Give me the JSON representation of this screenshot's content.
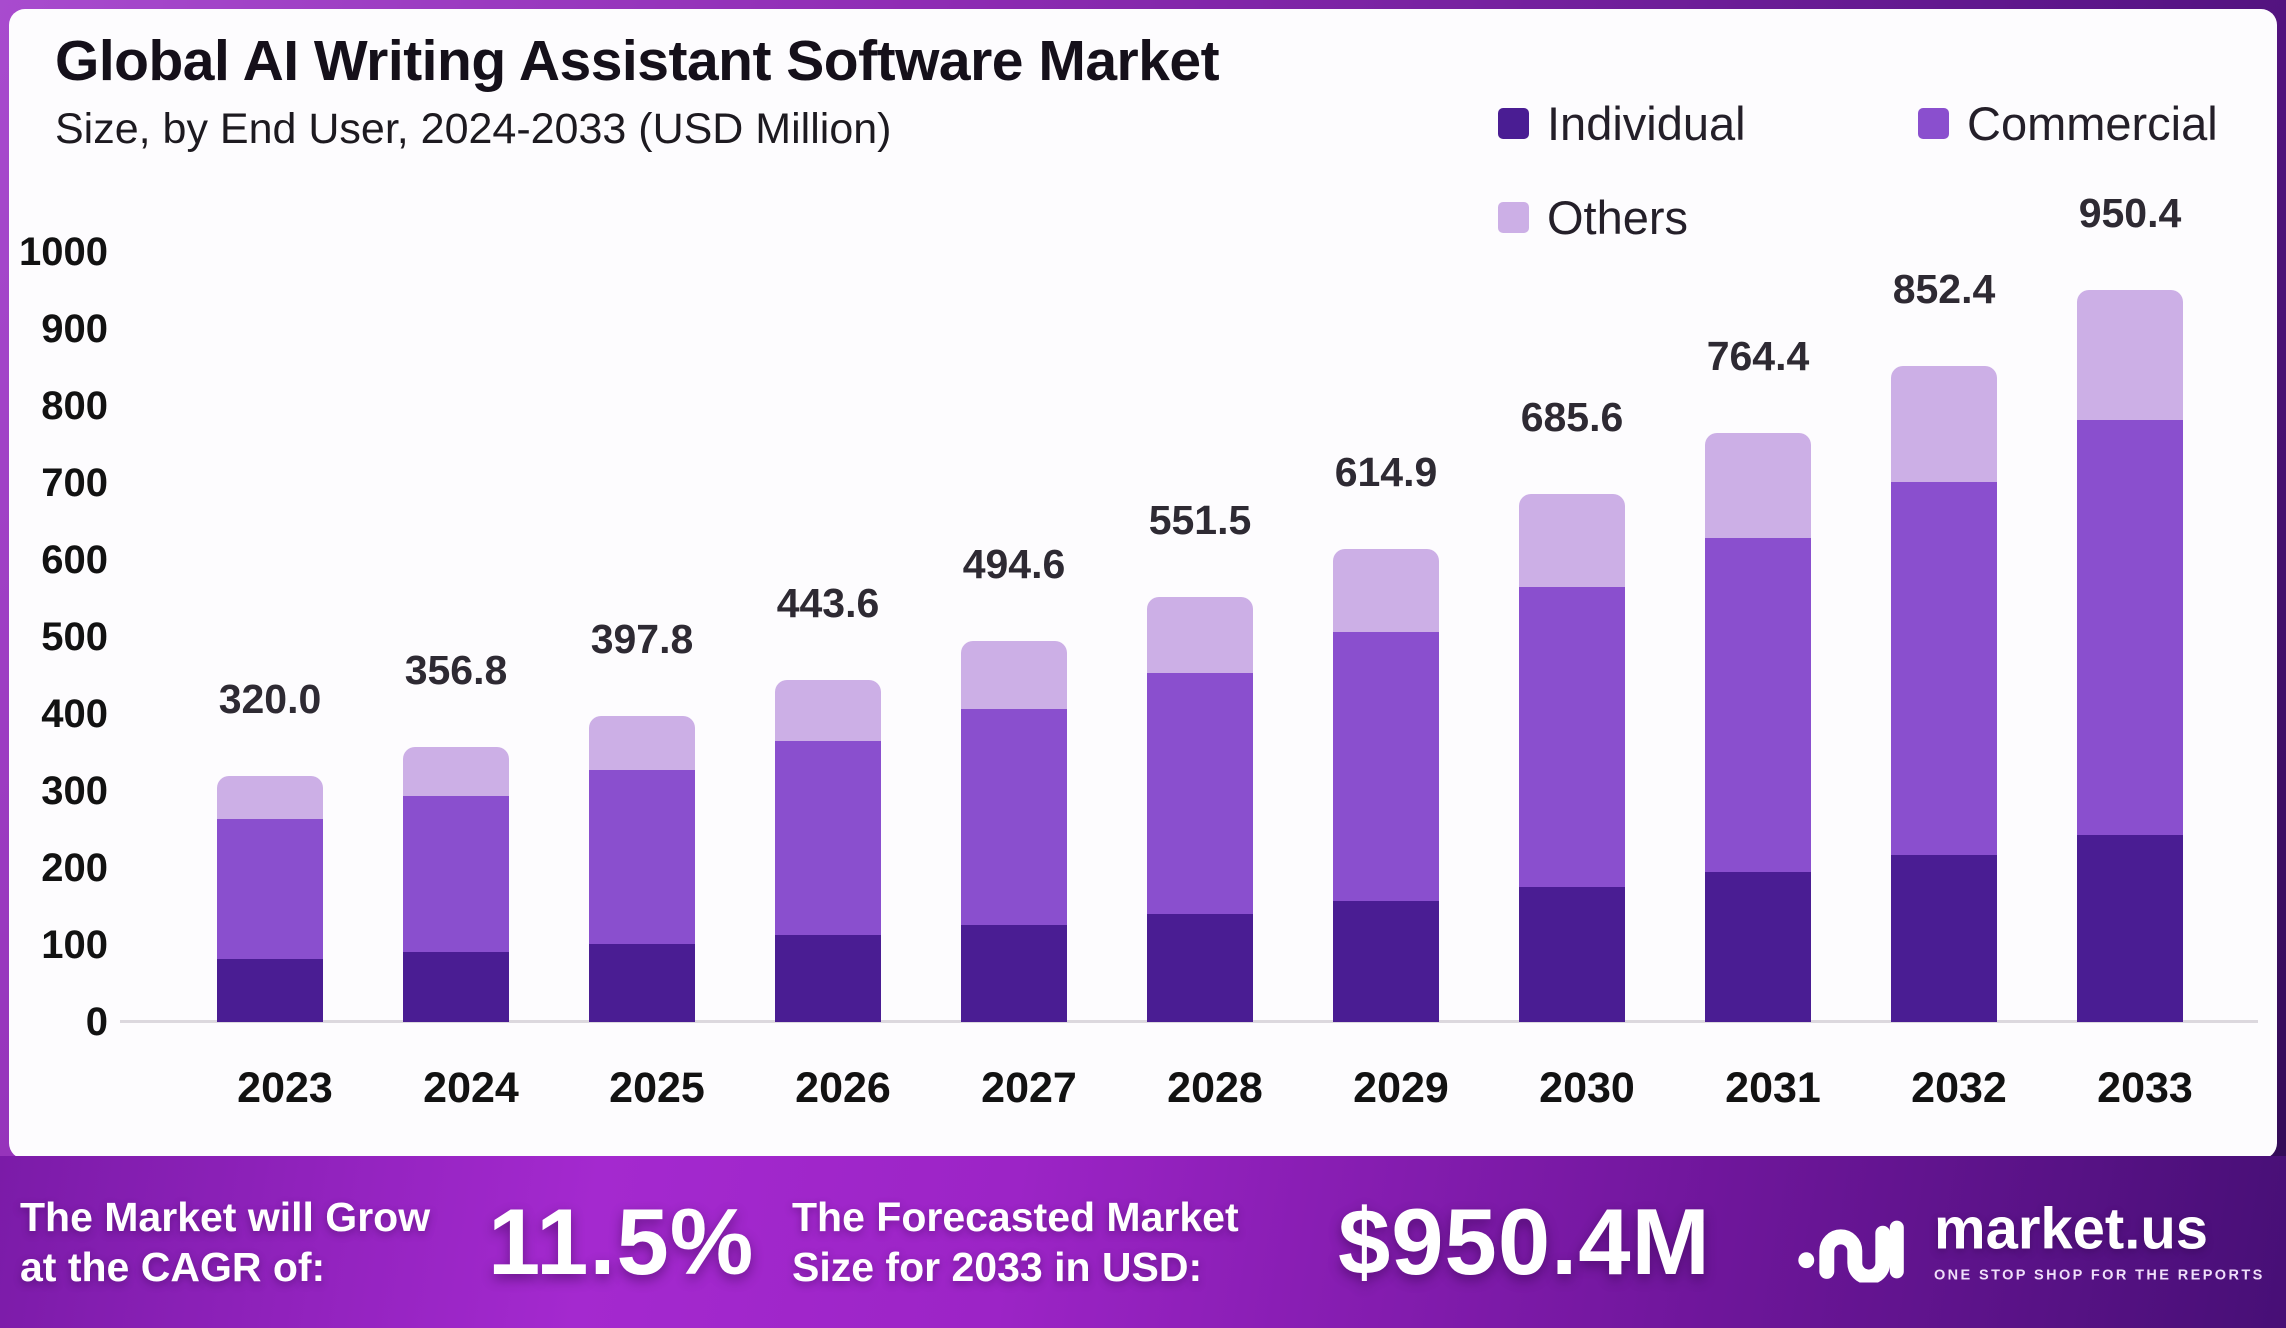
{
  "header": {
    "title": "Global AI Writing Assistant Software Market",
    "subtitle": "Size, by End User, 2024-2033 (USD Million)"
  },
  "legend": [
    {
      "label": "Individual",
      "color": "#4a1d93"
    },
    {
      "label": "Commercial",
      "color": "#8a4fce"
    },
    {
      "label": "Others",
      "color": "#ccafe6"
    }
  ],
  "chart_data": {
    "type": "bar",
    "stacked": true,
    "title": "Global AI Writing Assistant Software Market Size, by End User, 2024-2033 (USD Million)",
    "categories": [
      "2023",
      "2024",
      "2025",
      "2026",
      "2027",
      "2028",
      "2029",
      "2030",
      "2031",
      "2032",
      "2033"
    ],
    "series": [
      {
        "name": "Individual",
        "color": "#4a1d93",
        "values": [
          81.6,
          91.0,
          101.4,
          113.1,
          126.1,
          140.6,
          156.8,
          174.8,
          194.9,
          217.4,
          242.4
        ]
      },
      {
        "name": "Commercial",
        "color": "#8a4fce",
        "values": [
          181.8,
          202.7,
          226.0,
          252.0,
          281.0,
          313.3,
          349.3,
          389.5,
          434.2,
          484.2,
          539.8
        ]
      },
      {
        "name": "Others",
        "color": "#ccafe6",
        "values": [
          56.6,
          63.1,
          70.4,
          78.5,
          87.5,
          97.6,
          108.8,
          121.3,
          135.3,
          150.8,
          168.2
        ]
      }
    ],
    "totals": [
      "320.0",
      "356.8",
      "397.8",
      "443.6",
      "494.6",
      "551.5",
      "614.9",
      "685.6",
      "764.4",
      "852.4",
      "950.4"
    ],
    "xlabel": "",
    "ylabel": "",
    "ylim": [
      0,
      1000
    ],
    "yticks": [
      0,
      100,
      200,
      300,
      400,
      500,
      600,
      700,
      800,
      900,
      1000
    ],
    "grid": false,
    "legend_position": "top-right"
  },
  "banner": {
    "growth_label_line1": "The Market will Grow",
    "growth_label_line2": "at the CAGR of:",
    "cagr_value": "11.5%",
    "forecast_label_line1": "The Forecasted Market",
    "forecast_label_line2": "Size for 2033 in USD:",
    "forecast_value": "$950.4M",
    "brand": {
      "name": "market.us",
      "tagline": "ONE STOP SHOP FOR THE REPORTS"
    }
  },
  "colors": {
    "individual": "#4a1d93",
    "commercial": "#8a4fce",
    "others": "#ccafe6",
    "card_background": "#fdfcfe",
    "banner_gradient": [
      "#7b1ba8",
      "#a429cf",
      "#470f76"
    ]
  }
}
